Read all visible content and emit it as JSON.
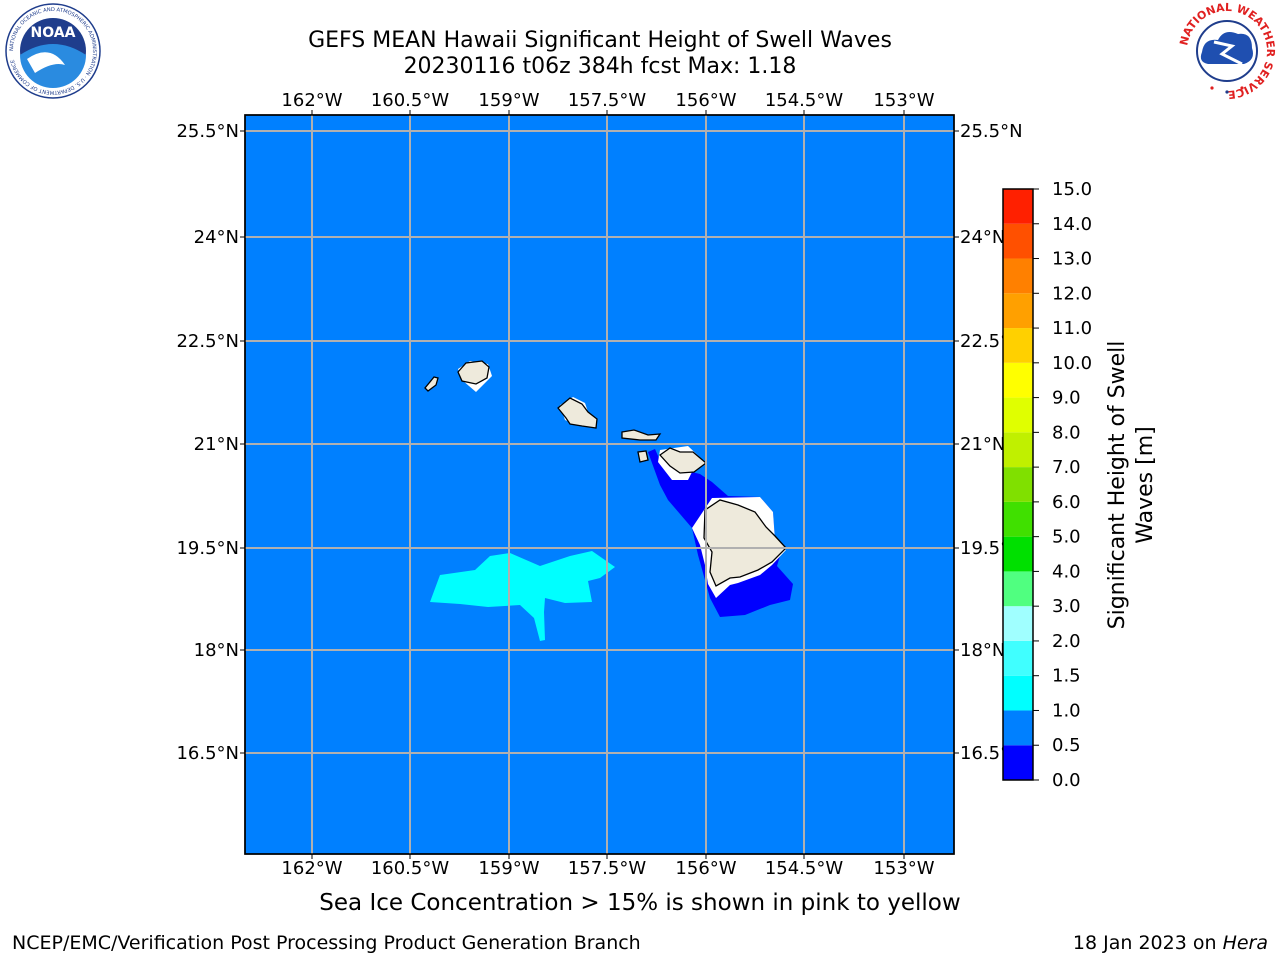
{
  "header": {
    "title_line1": "GEFS MEAN Hawaii Significant Height of Swell Waves",
    "title_line2": "20230116 t06z 384h fcst   Max: 1.18"
  },
  "map": {
    "lon_labels": [
      "162°W",
      "160.5°W",
      "159°W",
      "157.5°W",
      "156°W",
      "154.5°W",
      "153°W"
    ],
    "lat_labels": [
      "25.5°N",
      "24°N",
      "22.5°N",
      "21°N",
      "19.5°N",
      "18°N",
      "16.5°N"
    ],
    "ocean_color": "#0080ff",
    "land_color": "#eeeadc"
  },
  "colorbar": {
    "label_line1": "Significant Height of Swell",
    "label_line2": "Waves [m]",
    "ticks": [
      "0.0",
      "0.5",
      "1.0",
      "1.5",
      "2.0",
      "3.0",
      "4.0",
      "5.0",
      "6.0",
      "7.0",
      "8.0",
      "9.0",
      "10.0",
      "11.0",
      "12.0",
      "13.0",
      "14.0",
      "15.0"
    ],
    "colors": [
      "#0000ff",
      "#0080ff",
      "#00ffff",
      "#40ffff",
      "#a0ffff",
      "#50ff80",
      "#00e000",
      "#40e000",
      "#80e000",
      "#c0f000",
      "#e0ff00",
      "#ffff00",
      "#ffd000",
      "#ffa000",
      "#ff8000",
      "#ff5000",
      "#ff2000",
      "#ff0000"
    ]
  },
  "note": "Sea Ice Concentration > 15% is shown in pink to yellow",
  "footer": {
    "left": "NCEP/EMC/Verification Post Processing Product Generation Branch",
    "right_prefix": "18 Jan 2023 on",
    "right_machine": "Hera"
  },
  "logos": {
    "noaa_text": "NOAA",
    "noaa_ring_text": "NATIONAL OCEANIC AND ATMOSPHERIC ADMINISTRATION · U.S. DEPARTMENT OF COMMERCE",
    "nws_ring_text": "NATIONAL WEATHER SERVICE"
  }
}
